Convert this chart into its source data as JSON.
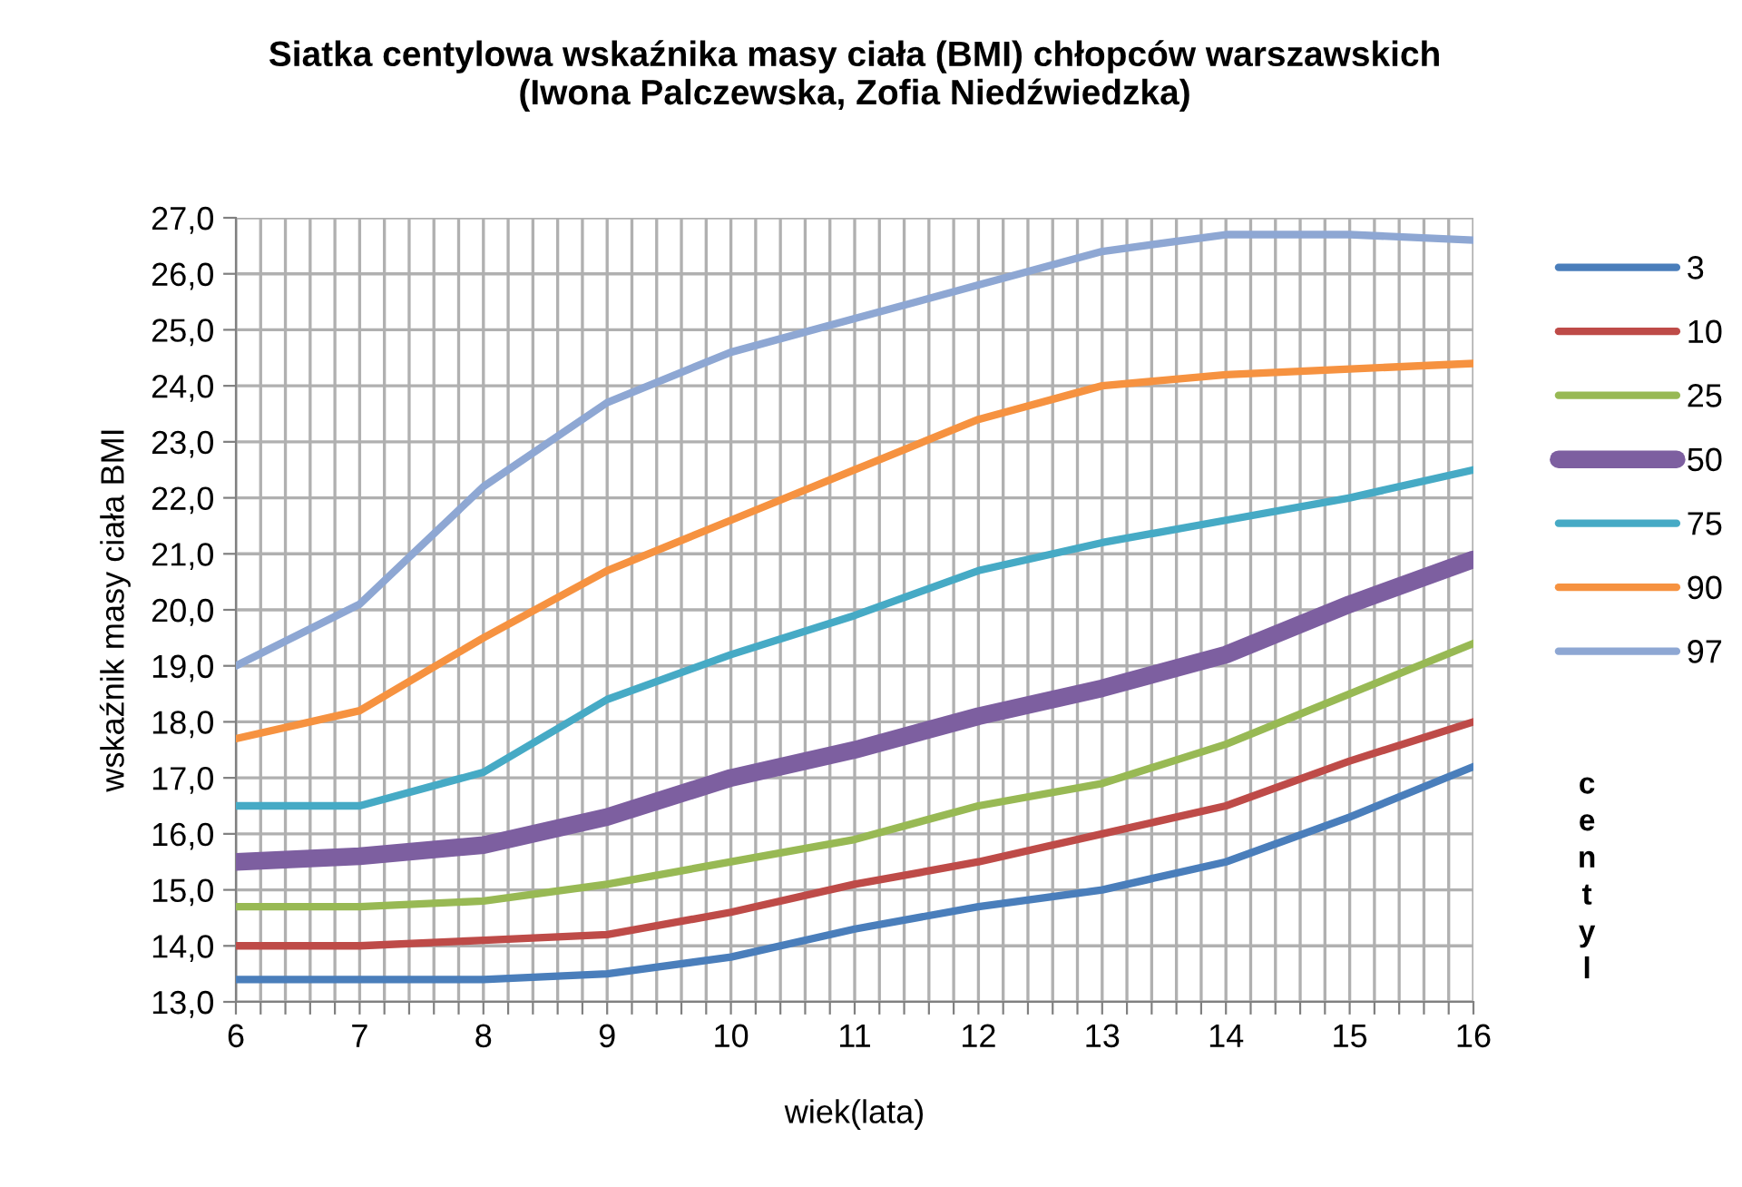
{
  "chart_data": {
    "type": "line",
    "title": "Siatka centylowa wskaźnika masy ciała (BMI) chłopców warszawskich\n(Iwona Palczewska, Zofia Niedźwiedzka)",
    "xlabel": "wiek(lata)",
    "ylabel": "wskaźnik masy ciała BMI",
    "legend_title": "centyl",
    "x": [
      6,
      7,
      8,
      9,
      10,
      11,
      12,
      13,
      14,
      15,
      16
    ],
    "series": [
      {
        "name": "3",
        "color": "#4a7ebb",
        "values": [
          13.4,
          13.4,
          13.4,
          13.5,
          13.8,
          14.3,
          14.7,
          15.0,
          15.5,
          16.3,
          17.2
        ]
      },
      {
        "name": "10",
        "color": "#be4b48",
        "values": [
          14.0,
          14.0,
          14.1,
          14.2,
          14.6,
          15.1,
          15.5,
          16.0,
          16.5,
          17.3,
          18.0
        ]
      },
      {
        "name": "25",
        "color": "#98b954",
        "values": [
          14.7,
          14.7,
          14.8,
          15.1,
          15.5,
          15.9,
          16.5,
          16.9,
          17.6,
          18.5,
          19.4
        ]
      },
      {
        "name": "50",
        "color": "#7d5fa0",
        "values": [
          15.5,
          15.6,
          15.8,
          16.3,
          17.0,
          17.5,
          18.1,
          18.6,
          19.2,
          20.1,
          20.9
        ]
      },
      {
        "name": "75",
        "color": "#46aac5",
        "values": [
          16.5,
          16.5,
          17.1,
          18.4,
          19.2,
          19.9,
          20.7,
          21.2,
          21.6,
          22.0,
          22.5
        ]
      },
      {
        "name": "90",
        "color": "#f69240",
        "values": [
          17.7,
          18.2,
          19.5,
          20.7,
          21.6,
          22.5,
          23.4,
          24.0,
          24.2,
          24.3,
          24.4
        ]
      },
      {
        "name": "97",
        "color": "#8ea7d3",
        "values": [
          19.0,
          20.1,
          22.2,
          23.7,
          24.6,
          25.2,
          25.8,
          26.4,
          26.7,
          26.7,
          26.6
        ]
      }
    ],
    "xlim": [
      6,
      16
    ],
    "xticks": [
      6,
      {
        "value": 6.2,
        "label": null
      },
      {
        "value": 6.4,
        "label": null
      },
      {
        "value": 6.6,
        "label": null
      },
      {
        "value": 6.8,
        "label": null
      },
      7,
      {
        "value": 7.2,
        "label": null
      },
      {
        "value": 7.4,
        "label": null
      },
      {
        "value": 7.6,
        "label": null
      },
      {
        "value": 7.8,
        "label": null
      },
      8,
      {
        "value": 8.2,
        "label": null
      },
      {
        "value": 8.4,
        "label": null
      },
      {
        "value": 8.6,
        "label": null
      },
      {
        "value": 8.8,
        "label": null
      },
      9,
      {
        "value": 9.2,
        "label": null
      },
      {
        "value": 9.4,
        "label": null
      },
      {
        "value": 9.6,
        "label": null
      },
      {
        "value": 9.8,
        "label": null
      },
      10,
      {
        "value": 10.2,
        "label": null
      },
      {
        "value": 10.4,
        "label": null
      },
      {
        "value": 10.6,
        "label": null
      },
      {
        "value": 10.8,
        "label": null
      },
      11,
      {
        "value": 11.2,
        "label": null
      },
      {
        "value": 11.4,
        "label": null
      },
      {
        "value": 11.6,
        "label": null
      },
      {
        "value": 11.8,
        "label": null
      },
      12,
      {
        "value": 12.2,
        "label": null
      },
      {
        "value": 12.4,
        "label": null
      },
      {
        "value": 12.6,
        "label": null
      },
      {
        "value": 12.8,
        "label": null
      },
      13,
      {
        "value": 13.2,
        "label": null
      },
      {
        "value": 13.4,
        "label": null
      },
      {
        "value": 13.6,
        "label": null
      },
      {
        "value": 13.8,
        "label": null
      },
      14,
      {
        "value": 14.2,
        "label": null
      },
      {
        "value": 14.4,
        "label": null
      },
      {
        "value": 14.6,
        "label": null
      },
      {
        "value": 14.8,
        "label": null
      },
      15,
      {
        "value": 15.2,
        "label": null
      },
      {
        "value": 15.4,
        "label": null
      },
      {
        "value": 15.6,
        "label": null
      },
      {
        "value": 15.8,
        "label": null
      },
      16
    ],
    "ylim": [
      13,
      27
    ],
    "yticks": [
      {
        "value": 13,
        "label": "13,0"
      },
      {
        "value": 14,
        "label": "14,0"
      },
      {
        "value": 15,
        "label": "15,0"
      },
      {
        "value": 16,
        "label": "16,0"
      },
      {
        "value": 17,
        "label": "17,0"
      },
      {
        "value": 18,
        "label": "18,0"
      },
      {
        "value": 19,
        "label": "19,0"
      },
      {
        "value": 20,
        "label": "20,0"
      },
      {
        "value": 21,
        "label": "21,0"
      },
      {
        "value": 22,
        "label": "22,0"
      },
      {
        "value": 23,
        "label": "23,0"
      },
      {
        "value": 24,
        "label": "24,0"
      },
      {
        "value": 25,
        "label": "25,0"
      },
      {
        "value": 26,
        "label": "26,0"
      },
      {
        "value": 27,
        "label": "27,0"
      }
    ],
    "grid": true,
    "legend": "right",
    "marker": "none",
    "line_style": "solid"
  }
}
